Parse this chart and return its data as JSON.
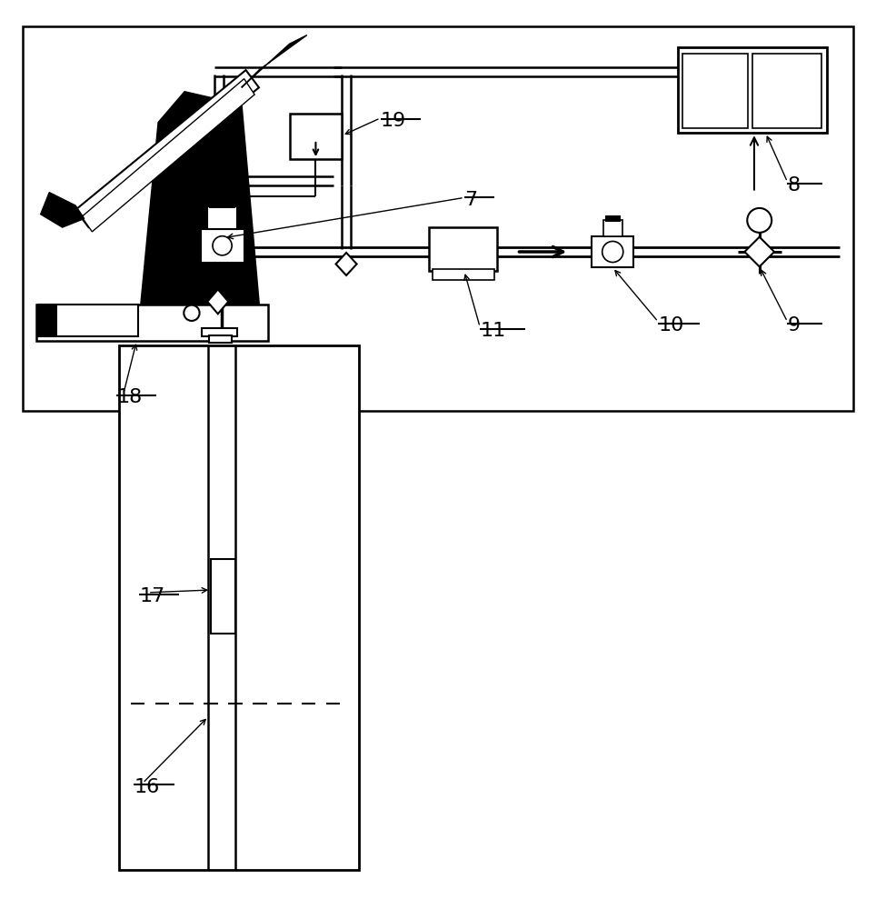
{
  "bg_color": "#ffffff",
  "lc": "#000000",
  "figsize": [
    9.64,
    10.0
  ],
  "dpi": 100
}
